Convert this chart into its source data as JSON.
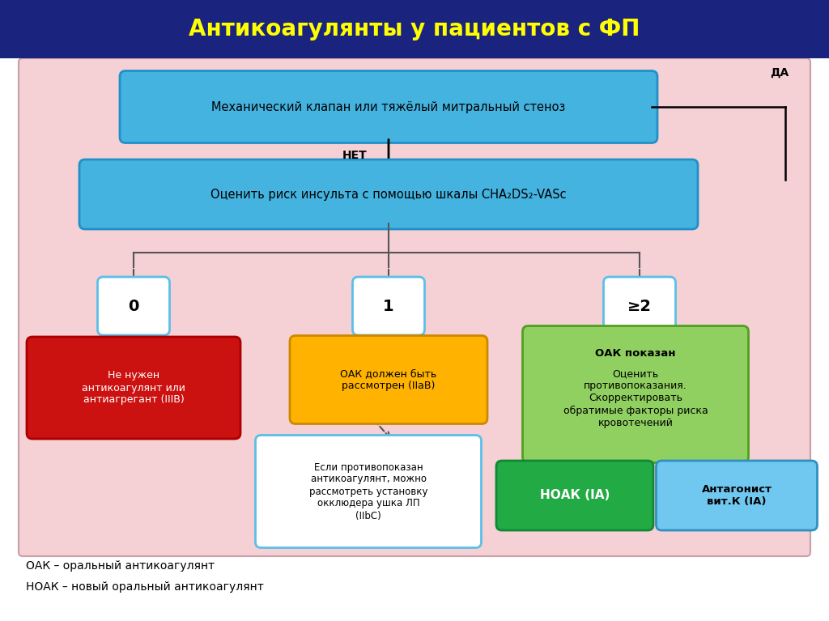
{
  "title": "Антикоагулянты у пациентов с ФП",
  "title_color": "#FFFF00",
  "title_bg": "#1a237e",
  "main_bg": "#ffffff",
  "pink_bg": "#f5d0d5",
  "pink_border": "#c8a0a8",
  "box1_text": "Механический клапан или тяжёлый митральный стеноз",
  "box2_text": "Оценить риск инсульта с помощью шкалы CHA₂DS₂-VASc",
  "box_blue_color": "#45b3e0",
  "box_blue_border": "#2090c8",
  "score0_text": "0",
  "score1_text": "1",
  "score2_text": "≥2",
  "score_box_fill": "#ffffff",
  "score_box_border": "#5bbfe8",
  "red_box_text": "Не нужен\nантикоагулянт или\nантиагрегант (IIIB)",
  "red_box_color": "#cc1111",
  "red_box_border": "#aa0000",
  "yellow_box_text": "ОАК должен быть\nрассмотрен (IIaB)",
  "yellow_box_color": "#FFB300",
  "yellow_box_border": "#cc8800",
  "green_box_text_bold": "ОАК показан",
  "green_box_text_normal": "Оценить\nпротивопоказания.\nСкорректировать\nобратимые факторы риска\nкровотечений",
  "green_box_color": "#90d060",
  "green_box_border": "#50a020",
  "white_box_text": "Если противопоказан\nантикоагулянт, можно\nрассмотреть установку\nокклюдера ушка ЛП\n(IIbC)",
  "white_box_color": "#ffffff",
  "white_box_border": "#5bbfe8",
  "noak_text": "НОАК (IA)",
  "noak_color": "#22aa44",
  "noak_border": "#118833",
  "antag_text": "Антагонист\nвит.К (IA)",
  "antag_color": "#70c8f0",
  "antag_border": "#3090c0",
  "net_text": "НЕТ",
  "da_text": "ДА",
  "footnote1": "ОАК – оральный антикоагулянт",
  "footnote2": "НОАК – новый оральный антикоагулянт"
}
